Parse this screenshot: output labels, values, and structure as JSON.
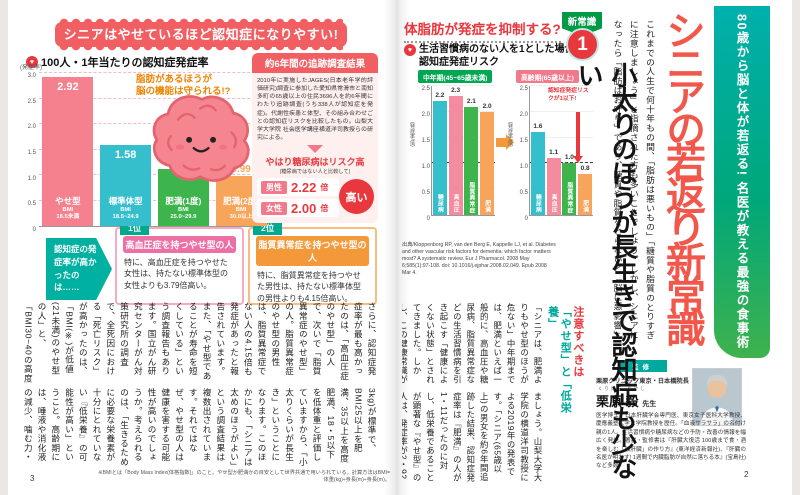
{
  "icons": {
    "bullet": "♥"
  },
  "colors": {
    "accent_red": "#e8383d",
    "coral_title": "#f2574b",
    "teal": "#00a99d",
    "green": "#00a652",
    "pink": "#f2798a",
    "banner_pink": "#f25f63",
    "orange_note": "#f08300",
    "rank1_header": "#ee6fa3",
    "rank2_header": "#f39939"
  },
  "left_page": {
    "page_number": "3",
    "banner": "シニアはやせているほど認知症になりやすい!",
    "chart_heading": "100人・1年当たりの認知症発症率",
    "chart_note_line1": "脂肪があるほうが",
    "chart_note_line2": "脳の機能は守られる!?",
    "survey_box": {
      "title": "約6年間の追跡調査結果",
      "body": "2010年に実施したJAGES(日本老年学的評価研究)調査に参加した愛知県常滑市と南知多町の65歳以上の住民3696人を約6年間にわたり追跡調査(うち338人が認知症を発症)。代謝性疾患と体型、その組み合わせごとの認知症リスクを比較したもの。山梨大学大学院 社会医学講座横道洋司教授らの研究による。",
      "sub_title": "やはり糖尿病はリスク高",
      "sub_note": "(糖尿病ではない人と比較して)",
      "rows": [
        {
          "label": "男性",
          "value": "2.22",
          "unit": "倍"
        },
        {
          "label": "女性",
          "value": "2.00",
          "unit": "倍"
        }
      ],
      "badge": "高い"
    },
    "arrow_note": "認知症の発症率が高かったのは……",
    "rank_boxes": [
      {
        "rank": "1位",
        "title": "高血圧症を持つやせ型の人",
        "body": "特に、高血圧症を持つやせた女性は、持たない標準体型の女性よりも3.79倍高い。"
      },
      {
        "rank": "2位",
        "title": "脂質異常症を持つやせ型の人",
        "body": "特に、脂質異常症を持つやせた男性は、持たない標準体型の男性よりも4.15倍高い。"
      }
    ],
    "body_rows": [
      "さらに、認知症発症率が最も高かったのは、「高血圧症のやせ型」の人で、次いで「脂質異常症のやせ型」の人。脂質異常症のやせ型の男性は、脂質異常症でない人の4.15倍も発症があったと報告されています。また、「やせ型であることが寿命を短くしている」という調査報告もあります。国立がん研究センターがん対策研究所の調査で、全死因における「死亡リスク」が高かったのは、「BMI(※)が低値(21未満)のやせ型の人」と、「BMI30~40の高度肥満の人」でした。死亡リスクが低かったのは、「BMI21~27の人」と報告されています。日本では、BMI22(身長160cmなら体重56・",
      "3kg)が標準で、BMI25以上を肥満、35以上を高度肥満、18・5以下を低体重と評価していますから、「小太りくらいが長生き」ということになります。このほかにも、「シニアは太めのほうがよい」という調査結果は複数出されています。それではなぜ、やせ型の人は健康を害する可能性が高いのでしょうか。考えられるのは、「生きるために必要な栄養素が十分にとれていない『低栄養』の可能性が高い」ということ。高齢期には、唾液や消化液の減少、噛む力・飲み込む力の低下などの影響で、食欲が落ちやすいもの。自分では、しっかり食べているつもりでも、実は低栄養というケースが少なくないのです。"
    ],
    "footnote": "※BMIとは「Body Mass Index(体格指数)」のこと。やせ型か肥満かの目安として世界共通で用いられている。計算方法はBMI=体重(kg)÷身長(m)÷身長(m)。"
  },
  "right_page": {
    "page_number": "2",
    "kicker_band": "80歳から脳と体が若返る! 名医が教える最強の食事術",
    "main_title": "シニアの若返り新常識",
    "intro": "これまでの人生で何十年もの間、「脂肪は悪いもの」「糖質や脂質のとりすぎに注意しましょう」と指摘された方も多いことでしょう。しかし、シニアになったら「脂肪はお守り」であり、糖質や脂質をとらないと「脳に悪影響」が出てしまいます。脳と体の機能維持、若返りのために知っておきたい食事のコツをご紹介します。",
    "badge": {
      "ribbon": "新常識",
      "number": "1"
    },
    "headline": "小太りのほうが長生きで認知症も少ない",
    "section_heading": "体脂肪が発症を抑制する?",
    "charts_caption_line1": "生活習慣病のない人を1とした場合の",
    "charts_caption_line2": "認知症発症リスク",
    "citation": "出典/Kloppenborg RP, van den Berg E, Kappelle LJ, et al. Diabetes and other vascular risk factors for dementia: which factor matters most? A systematic review. Eur J Pharmacol. 2008 May 6;585(1):97-108. doi: 10.1016/j.ejphar.2008.02.049. Epub 2008 Mar 4.",
    "subhead_red": "注意すべきは",
    "subhead_teal": "「やせ型」と「低栄養」",
    "body_rows": [
      "「シニアは、肥満よりもやせ型のほうが危ない」中年期までは、肥満といえば一般的に、高血圧や糖尿病、脂質異常症などの生活習慣病を引き起こす「健康によくない状態」とされてきました。しかし、この健康常識が覆りつつあります。「中年期の肥満は認知症の危険因子だが、高齢期における肥満は認知症の発症を防ぐ可能性がある」というのです。シニアの肥満が体によい効果をもつ可能性は、循環器疾患やがんの治療などでも注目されています。1つデータを紹介し",
      "ましょう。山梨大学大学院の横道洋司教授による2019年の発表です。「シニア(65歳以上)の男女を約6年間追跡した結果、認知症発症率は『肥満』の人が1・11だったのに対し、低栄養であることが顕著な『やせ型』の人は、発症率が2・92だった」。なお糖尿病の人の認知症発症リスクはいずれも高く、糖尿病の男性で2・22倍、女性で2・00倍の発症がありました。"
    ],
    "supervisor": {
      "label": "監修",
      "clinic": "栗原クリニック東京・日本橋院長",
      "name_furigana": "くりはら たけし",
      "name": "栗原 毅",
      "honorific": "先生",
      "profile": "医学博士。日本肝臓学会専門医、東京女子医科大学教授、慶應義塾大学大学院教授を歴任。「血液サラサラ」の名付け親の1人。生活習慣病や糖尿病などの予防・改善の情報を幅広く発信。著書・監修書は『肝臓大復活 100歳まで食・酒を楽しむ「強肝臓」の作り方』(東洋経済新報社)、『肝臓の名医が明かす! 1週間で内臓脂肪が自然に落ちる本』(宝島社)など多数。"
    }
  },
  "chart_data": [
    {
      "type": "bar",
      "title": "100人・1年当たりの認知症発症率",
      "ylabel": "(発症率)",
      "ylim": [
        0,
        3.0
      ],
      "tick_step": 0.5,
      "decimals": 2,
      "categories": [
        "やせ型",
        "標準体型",
        "肥満(1度)",
        "肥満(2度)"
      ],
      "bmi_label": "BMI",
      "sub_labels": [
        "18.5未満",
        "18.5~24.9",
        "25.0~29.9",
        "30.0以上"
      ],
      "values": [
        2.92,
        1.58,
        1.11,
        0.99
      ],
      "colors": [
        "#f5808e",
        "#35bfcd",
        "#3db54c",
        "#f7a55b"
      ],
      "label_inside": [
        true,
        true,
        false,
        false
      ],
      "grid": true
    },
    {
      "type": "bar",
      "title": "中年期(45~65歳未満)",
      "ylabel": "(発症率/倍)",
      "ylim": [
        0,
        2.5
      ],
      "tick_step": 0.5,
      "decimals": 1,
      "baseline": 1.0,
      "categories": [
        "糖尿病",
        "高血圧",
        "脂質異常症",
        "肥満"
      ],
      "values": [
        2.2,
        2.3,
        2.1,
        2.0
      ],
      "colors": [
        "#35bfcd",
        "#f48b9e",
        "#3db54c",
        "#f7a55b"
      ],
      "grid": true
    },
    {
      "type": "bar",
      "title": "高齢期(65歳以上)",
      "ylabel": "(発症率/倍)",
      "ylim": [
        0,
        2.5
      ],
      "tick_step": 0.5,
      "decimals": 1,
      "baseline": 1.0,
      "annotation": "認知症発症リスクが1以下!",
      "categories": [
        "糖尿病",
        "高血圧",
        "脂質異常症",
        "肥満"
      ],
      "values": [
        1.6,
        1.1,
        1.0,
        0.8
      ],
      "colors": [
        "#35bfcd",
        "#f48b9e",
        "#3db54c",
        "#f7a55b"
      ],
      "grid": true
    }
  ]
}
